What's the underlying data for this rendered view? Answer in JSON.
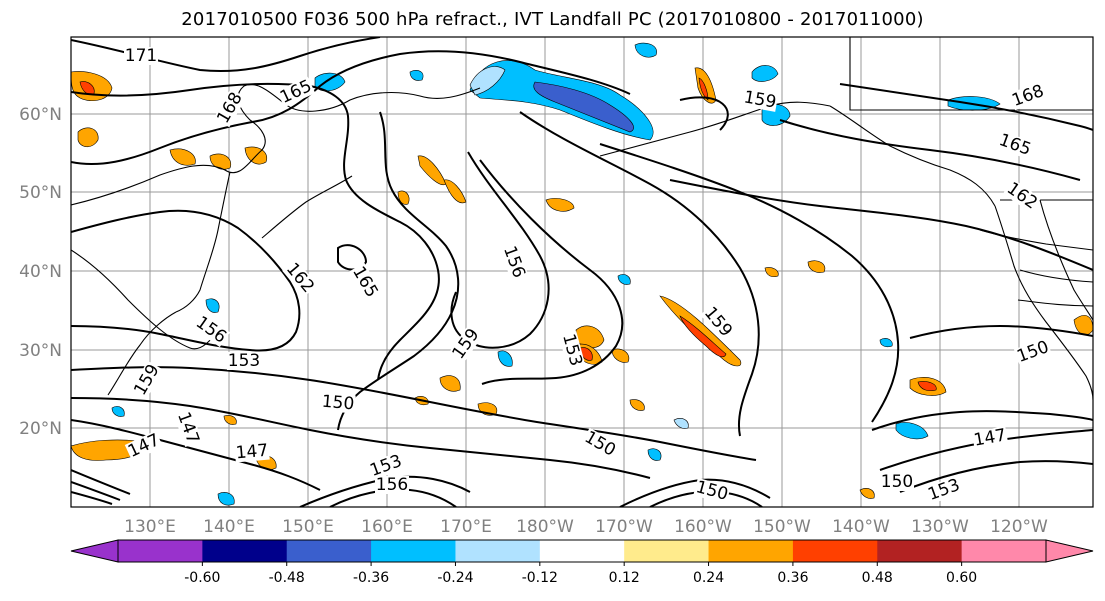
{
  "title": "2017010500 F036 500 hPa refract., IVT Landfall PC (2017010800 - 2017011000)",
  "lat_labels": [
    "60°N",
    "50°N",
    "40°N",
    "30°N",
    "20°N"
  ],
  "lon_labels": [
    "130°E",
    "140°E",
    "150°E",
    "160°E",
    "170°E",
    "180°W",
    "170°W",
    "160°W",
    "150°W",
    "140°W",
    "130°W",
    "120°W"
  ],
  "contour_labels": [
    "171",
    "168",
    "165",
    "159",
    "168",
    "165",
    "162",
    "162",
    "165",
    "156",
    "156",
    "159",
    "159",
    "153",
    "153",
    "159",
    "150",
    "147",
    "147",
    "147",
    "150",
    "153",
    "156",
    "150",
    "150",
    "153",
    "147",
    "150"
  ],
  "colorbar": {
    "colors": [
      "#9932cc",
      "#00008b",
      "#3a5fcd",
      "#00bfff",
      "#b0e2ff",
      "#ffffff",
      "#ffeb8c",
      "#ffa500",
      "#ff4000",
      "#b22222",
      "#ff88aa"
    ],
    "tick_labels": [
      "-0.60",
      "-0.48",
      "-0.36",
      "-0.24",
      "-0.12",
      "0.12",
      "0.24",
      "0.36",
      "0.48",
      "0.60"
    ]
  }
}
